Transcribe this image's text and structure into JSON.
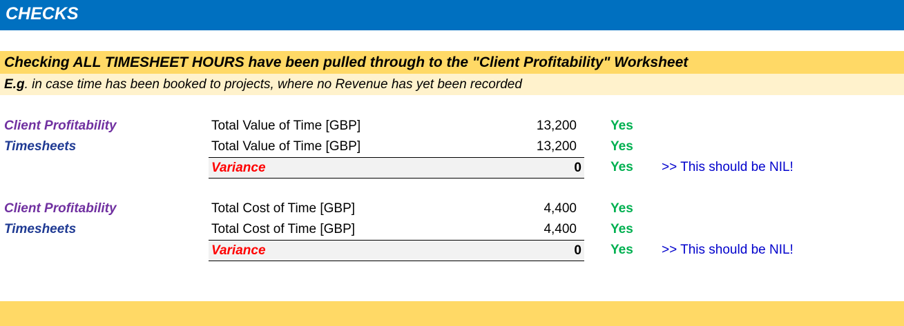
{
  "header": {
    "title": "CHECKS"
  },
  "section": {
    "title": "Checking ALL TIMESHEET HOURS have been pulled through to the \"Client Profitability\" Worksheet",
    "note_prefix": "E.g",
    "note_text": ". in case time has been booked to projects, where no Revenue has yet been recorded"
  },
  "checks": [
    {
      "rows": [
        {
          "source": "Client Profitability",
          "description": "Total Value of Time [GBP]",
          "value": "13,200",
          "status": "Yes"
        },
        {
          "source": "Timesheets",
          "description": "Total Value of Time [GBP]",
          "value": "13,200",
          "status": "Yes"
        }
      ],
      "variance": {
        "label": "Variance",
        "value": "0",
        "status": "Yes",
        "note": ">>  This should be NIL!"
      }
    },
    {
      "rows": [
        {
          "source": "Client Profitability",
          "description": "Total Cost of Time [GBP]",
          "value": "4,400",
          "status": "Yes"
        },
        {
          "source": "Timesheets",
          "description": "Total Cost of Time [GBP]",
          "value": "4,400",
          "status": "Yes"
        }
      ],
      "variance": {
        "label": "Variance",
        "value": "0",
        "status": "Yes",
        "note": ">>  This should be NIL!"
      }
    }
  ],
  "colors": {
    "header_bg": "#0070C0",
    "section_bg": "#FFD966",
    "note_bg": "#FFF2CC",
    "yes": "#00B050",
    "variance": "#FF0000",
    "client_profitability": "#7030A0",
    "timesheets": "#1F3A93"
  }
}
